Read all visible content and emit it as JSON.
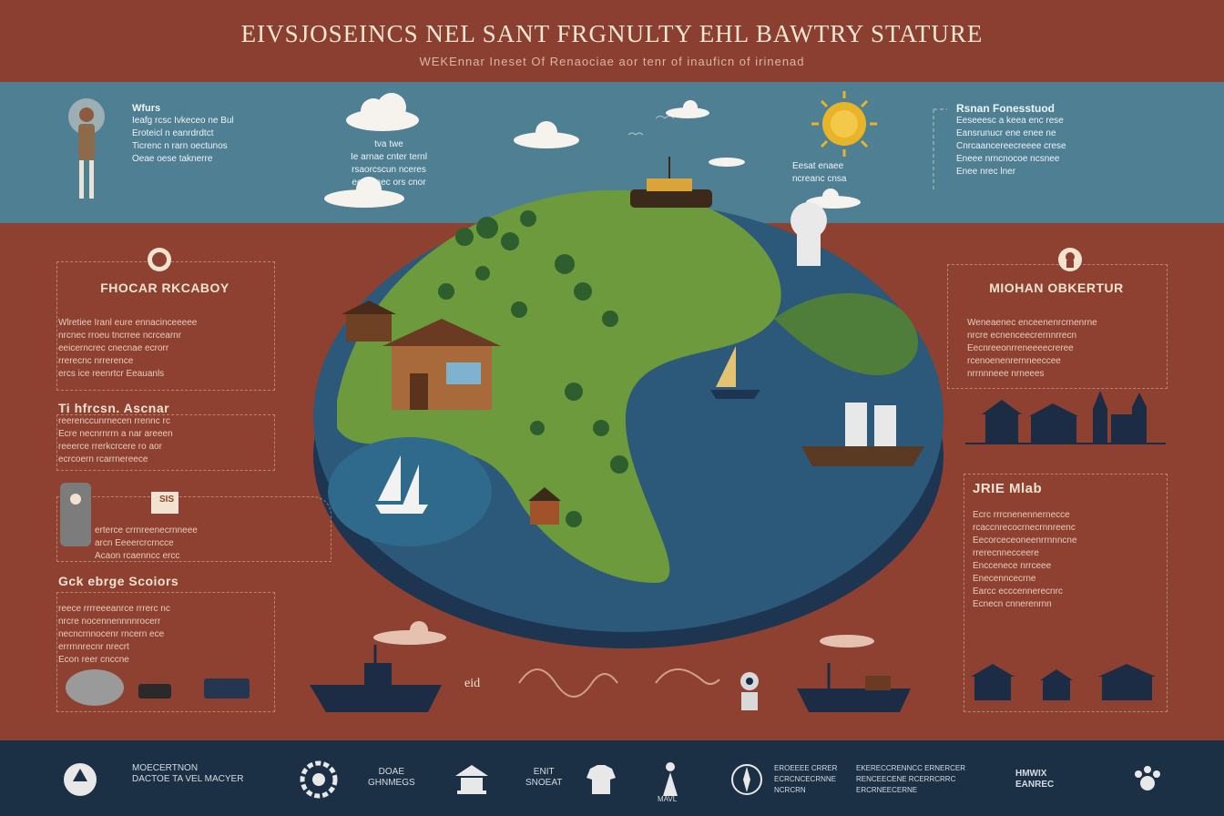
{
  "header": {
    "title": "EIVSJOSEINCS NEL SANT FRGNULTY EHL BAWTRY STATURE",
    "subtitle": "WEKEnnar Ineset Of Renaociae aor tenr of inauficn of irinenad"
  },
  "sky_band": {
    "left": {
      "heading": "Wfurs",
      "lines": [
        "Ieafg rcsc Ivkeceo ne Bul",
        "Eroteicl n eanrdrdtct",
        "Ticrenc n rarn oectunos",
        "Oeae oese taknerre"
      ]
    },
    "center": {
      "lines": [
        "tva twe",
        "Ie arnae cnter ternl",
        "rsaorcscun nceres",
        "eorar nec ors cnor"
      ]
    },
    "right": {
      "heading": "Rsnan Fonesstuod",
      "lines": [
        "Eeseeesc a keea enc rese",
        "Eansrunucr ene enee ne",
        "Cnrcaancereecreeee crese",
        "Eneee nrncnocoe ncsnee",
        "Enee nrec lner"
      ]
    },
    "sun_caption": [
      "Eesat enaee",
      "ncreanc cnsa"
    ]
  },
  "left_panel": {
    "section1": {
      "title": "FHOCAR RKCABOY",
      "lines": [
        "Wlretiee Iranl eure ennacinceeeee",
        "nrcnec rroeu tncrree ncrcearnr",
        "eeicerncrec cnecnae ecrorr",
        "rrerecnc nrrerence",
        "ercs ice reenrtcr Eeauanls"
      ]
    },
    "section2": {
      "title": "Ti hfrcsn. Ascnar",
      "lines": [
        "reerenccunrnecen rrennc rc",
        "Ecre necnrnrrn a nar areeen",
        "reeerce rrerkcrcere ro aor",
        "ecrcoern rcarrnereece"
      ]
    },
    "section3": {
      "badge": "SIS",
      "lines": [
        "erterce crrnreenecrnneee",
        "arcn Eeeercrcrncce",
        "Acaon rcaenncc ercc"
      ]
    },
    "section4": {
      "title": "Gck ebrge Scoiors",
      "lines": [
        "reece rrrreeeanrce rrrerc nc",
        "nrcre nocennennnnrocerr",
        "necncrnnocenr rncern ece",
        "errrnnrecnr nrecrt",
        "Econ reer cnccne"
      ]
    }
  },
  "right_panel": {
    "section1": {
      "title": "MIOHAN OBKERTUR",
      "lines": [
        "Weneaenec enceenenrcrnenrne",
        "nrcre ecnenceecrernnrrecn",
        "Eecnreeonrreneeeecreree",
        "rcenoenenrernneeccee",
        "nrrnnneee nrneees"
      ]
    },
    "section2": {
      "title": "JRIE Mlab",
      "lines": [
        "Ecrc rrrcnenennernecce",
        "rcaccnrecocrnecrnnreenc",
        "Eecorceceoneenrrnnncne",
        "rrerecnnecceere",
        "Enccenece nrrceee",
        "Enecenncecrne",
        "Earcc ecccennerecnrc",
        "Ecnecn cnnerenrnn"
      ]
    }
  },
  "bottom_strip": {
    "label": "eid"
  },
  "footer": {
    "items": [
      {
        "icon": "recycle-icon",
        "label": "MOECERTNON\nDACTOE TA VEL MACYER"
      },
      {
        "icon": "gear-icon",
        "label": "DOAE\nGHNMEGS"
      },
      {
        "icon": "shrine-icon",
        "label": "ENIT\nSNOEAT"
      },
      {
        "icon": "shirt-icon",
        "label": ""
      },
      {
        "icon": "figure-icon",
        "label": "MAVL"
      },
      {
        "icon": "compass-icon",
        "label": "EROEEEE CRRER\nECRCNCECRNNE\nNCRCRN"
      },
      {
        "icon": "leaf-icon",
        "label": "EKERECCRENNCC ERNERCER\nRENCEECENE RCERRCRRC\nERCRNEECERNE"
      },
      {
        "icon": "book-icon",
        "label": "HMWIX\nEANREC"
      },
      {
        "icon": "paw-icon",
        "label": ""
      }
    ]
  },
  "colors": {
    "terracotta": "#8e4131",
    "sky": "#4f7f93",
    "navy": "#1b2f45",
    "ocean": "#2c5879",
    "land": "#6c9a3d",
    "cream": "#f1e3d0",
    "sun": "#e8b42a"
  }
}
